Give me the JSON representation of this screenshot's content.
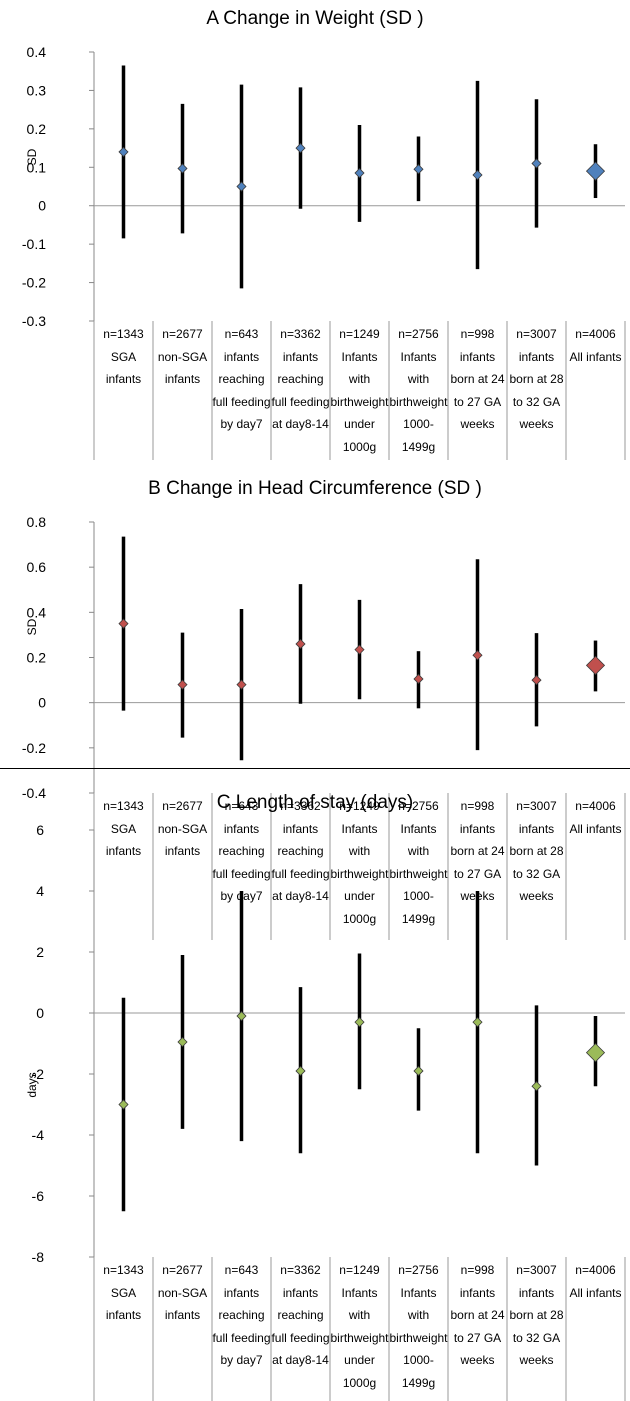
{
  "chart_data": [
    {
      "type": "scatter",
      "title": "A Change in Weight (SD )",
      "ylabel": "SD",
      "ylim": [
        -0.3,
        0.4
      ],
      "yticks": [
        "0.4",
        "0.3",
        "0.2",
        "0.1",
        "0",
        "-0.1",
        "-0.2",
        "-0.3"
      ],
      "marker_color": "#4F81BD",
      "categories": [
        [
          "n=1343",
          "SGA",
          "infants"
        ],
        [
          "n=2677",
          "non-SGA",
          "infants"
        ],
        [
          "n=643",
          "infants",
          "reaching",
          "full feeding",
          "by day7"
        ],
        [
          "n=3362",
          "infants",
          "reaching",
          "full feeding",
          "at day8-14"
        ],
        [
          "n=1249",
          "Infants",
          "with",
          "birthweight",
          "under",
          "1000g"
        ],
        [
          "n=2756",
          "Infants",
          "with",
          "birthweight",
          "1000-",
          "1499g"
        ],
        [
          "n=998",
          "infants",
          "born at 24",
          "to 27 GA",
          "weeks"
        ],
        [
          "n=3007",
          "infants",
          "born at 28",
          "to 32 GA",
          "weeks"
        ],
        [
          "n=4006",
          "All infants"
        ]
      ],
      "values": [
        0.14,
        0.097,
        0.05,
        0.15,
        0.085,
        0.095,
        0.08,
        0.11,
        0.09
      ],
      "lower": [
        -0.085,
        -0.072,
        -0.215,
        -0.008,
        -0.042,
        0.012,
        -0.165,
        -0.057,
        0.02
      ],
      "upper": [
        0.365,
        0.265,
        0.315,
        0.308,
        0.21,
        0.18,
        0.325,
        0.277,
        0.16
      ]
    },
    {
      "type": "scatter",
      "title": "B Change in Head Circumference (SD )",
      "ylabel": "SD",
      "ylim": [
        -0.4,
        0.8
      ],
      "yticks": [
        "0.8",
        "0.6",
        "0.4",
        "0.2",
        "0",
        "-0.2",
        "-0.4"
      ],
      "marker_color": "#C0504D",
      "categories": [
        [
          "n=1343",
          "SGA",
          "infants"
        ],
        [
          "n=2677",
          "non-SGA",
          "infants"
        ],
        [
          "n=643",
          "infants",
          "reaching",
          "full feeding",
          "by day7"
        ],
        [
          "n=3362",
          "infants",
          "reaching",
          "full feeding",
          "at day8-14"
        ],
        [
          "n=1249",
          "Infants",
          "with",
          "birthweight",
          "under",
          "1000g"
        ],
        [
          "n=2756",
          "Infants",
          "with",
          "birthweight",
          "1000-",
          "1499g"
        ],
        [
          "n=998",
          "infants",
          "born at 24",
          "to 27 GA",
          "weeks"
        ],
        [
          "n=3007",
          "infants",
          "born at 28",
          "to 32 GA",
          "weeks"
        ],
        [
          "n=4006",
          "All infants"
        ]
      ],
      "values": [
        0.35,
        0.08,
        0.08,
        0.26,
        0.235,
        0.105,
        0.21,
        0.1,
        0.165
      ],
      "lower": [
        -0.035,
        -0.155,
        -0.255,
        -0.005,
        0.015,
        -0.025,
        -0.21,
        -0.105,
        0.05
      ],
      "upper": [
        0.735,
        0.31,
        0.415,
        0.525,
        0.455,
        0.228,
        0.635,
        0.308,
        0.275
      ]
    },
    {
      "type": "scatter",
      "title": "C Length of stay (days)",
      "ylabel": "days",
      "ylim": [
        -8,
        6
      ],
      "yticks": [
        "6",
        "4",
        "2",
        "0",
        "-2",
        "-4",
        "-6",
        "-8"
      ],
      "marker_color": "#9BBB59",
      "categories": [
        [
          "n=1343",
          "SGA",
          "infants"
        ],
        [
          "n=2677",
          "non-SGA",
          "infants"
        ],
        [
          "n=643",
          "infants",
          "reaching",
          "full feeding",
          "by day7"
        ],
        [
          "n=3362",
          "infants",
          "reaching",
          "full feeding",
          "at day8-14"
        ],
        [
          "n=1249",
          "Infants",
          "with",
          "birthweight",
          "under",
          "1000g"
        ],
        [
          "n=2756",
          "Infants",
          "with",
          "birthweight",
          "1000-",
          "1499g"
        ],
        [
          "n=998",
          "infants",
          "born at 24",
          "to 27 GA",
          "weeks"
        ],
        [
          "n=3007",
          "infants",
          "born at 28",
          "to 32 GA",
          "weeks"
        ],
        [
          "n=4006",
          "All infants"
        ]
      ],
      "values": [
        -3.0,
        -0.95,
        -0.1,
        -1.9,
        -0.3,
        -1.9,
        -0.3,
        -2.4,
        -1.3
      ],
      "lower": [
        -6.5,
        -3.8,
        -4.2,
        -4.6,
        -2.5,
        -3.2,
        -4.6,
        -5.0,
        -2.4
      ],
      "upper": [
        0.5,
        1.9,
        4.0,
        0.85,
        1.95,
        -0.5,
        4.0,
        0.25,
        -0.1
      ]
    }
  ]
}
